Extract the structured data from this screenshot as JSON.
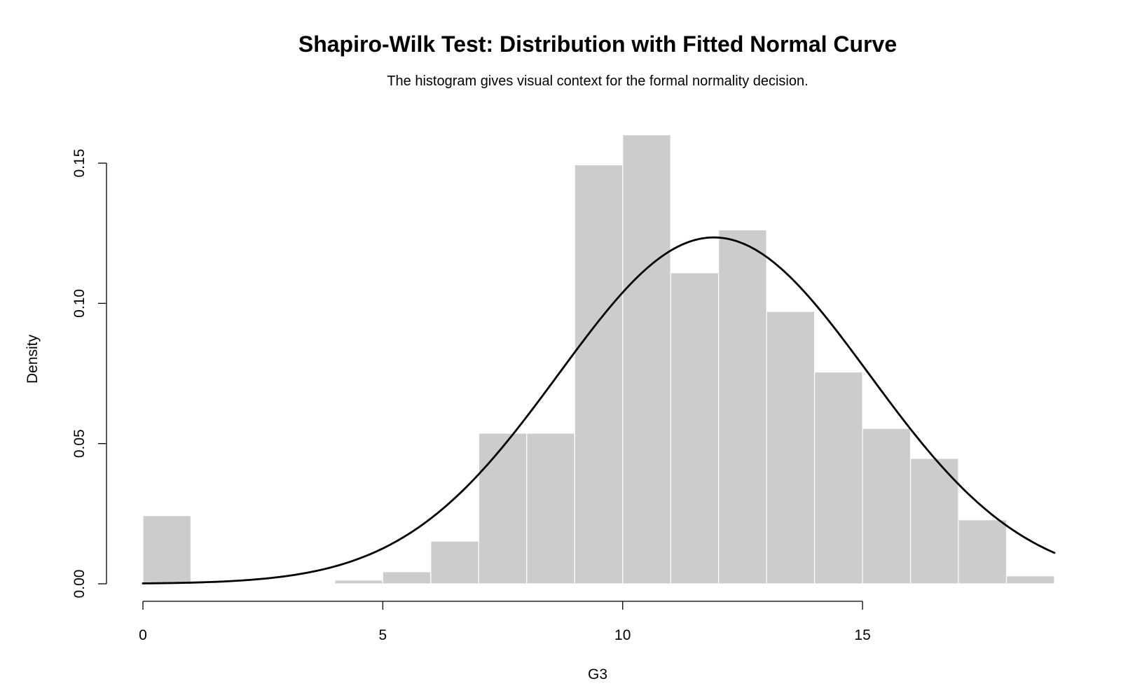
{
  "chart_data": {
    "type": "bar",
    "title": "Shapiro-Wilk Test: Distribution with Fitted Normal Curve",
    "subtitle": "The histogram gives visual context for the formal normality decision.",
    "xlabel": "G3",
    "ylabel": "Density",
    "xlim": [
      0,
      19
    ],
    "ylim": [
      0,
      0.16
    ],
    "x_ticks": [
      0,
      5,
      10,
      15
    ],
    "x_tick_labels": [
      "0",
      "5",
      "10",
      "15"
    ],
    "y_ticks": [
      0,
      0.05,
      0.1,
      0.15
    ],
    "y_tick_labels": [
      "0.00",
      "0.05",
      "0.10",
      "0.15"
    ],
    "bins": [
      {
        "start": 0,
        "end": 1,
        "density": 0.0243
      },
      {
        "start": 1,
        "end": 2,
        "density": 0
      },
      {
        "start": 2,
        "end": 3,
        "density": 0
      },
      {
        "start": 3,
        "end": 4,
        "density": 0
      },
      {
        "start": 4,
        "end": 5,
        "density": 0.0013
      },
      {
        "start": 5,
        "end": 6,
        "density": 0.0043
      },
      {
        "start": 6,
        "end": 7,
        "density": 0.0152
      },
      {
        "start": 7,
        "end": 8,
        "density": 0.0537
      },
      {
        "start": 8,
        "end": 9,
        "density": 0.0537
      },
      {
        "start": 9,
        "end": 10,
        "density": 0.1494
      },
      {
        "start": 10,
        "end": 11,
        "density": 0.1601
      },
      {
        "start": 11,
        "end": 12,
        "density": 0.1109
      },
      {
        "start": 12,
        "end": 13,
        "density": 0.1262
      },
      {
        "start": 13,
        "end": 14,
        "density": 0.0971
      },
      {
        "start": 14,
        "end": 15,
        "density": 0.0755
      },
      {
        "start": 15,
        "end": 16,
        "density": 0.0554
      },
      {
        "start": 16,
        "end": 17,
        "density": 0.0447
      },
      {
        "start": 17,
        "end": 18,
        "density": 0.0228
      },
      {
        "start": 18,
        "end": 19,
        "density": 0.0028
      }
    ],
    "normal_fit": {
      "mean": 11.9,
      "sd": 3.23
    },
    "grid": false,
    "legend": "none",
    "colors": {
      "bar_fill": "#cccccc",
      "bar_border": "#ffffff",
      "curve": "#000000",
      "axis": "#000000"
    }
  }
}
